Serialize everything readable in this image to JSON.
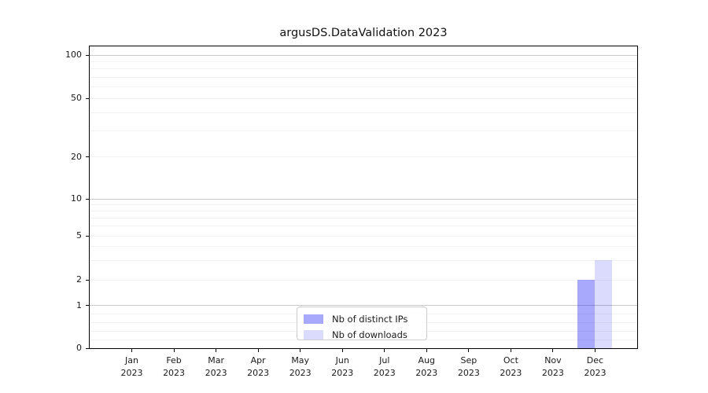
{
  "figure": {
    "background": "#ffffff"
  },
  "chart_data": {
    "type": "bar",
    "title": "argusDS.DataValidation 2023",
    "categories": [
      "Jan",
      "Feb",
      "Mar",
      "Apr",
      "May",
      "Jun",
      "Jul",
      "Aug",
      "Sep",
      "Oct",
      "Nov",
      "Dec"
    ],
    "year_label": "2023",
    "series": [
      {
        "name": "Nb of distinct IPs",
        "color": "rgba(0,0,250,0.34)",
        "color_hex_on_white": "#a8a8fd",
        "values": [
          0,
          0,
          0,
          0,
          0,
          0,
          0,
          0,
          0,
          0,
          0,
          2
        ]
      },
      {
        "name": "Nb of downloads",
        "color": "rgba(0,0,250,0.14)",
        "color_hex_on_white": "#dbdbfe",
        "values": [
          0,
          0,
          0,
          0,
          0,
          0,
          0,
          0,
          0,
          0,
          0,
          3
        ]
      }
    ],
    "xlabel": "",
    "ylabel": "",
    "y_axis": {
      "scale": "symlog",
      "ticks": [
        0,
        1,
        2,
        5,
        10,
        20,
        50,
        100
      ],
      "minor_gridlines": [
        0.2,
        0.4,
        0.6,
        0.8,
        2,
        3,
        4,
        5,
        6,
        7,
        8,
        9,
        20,
        30,
        40,
        50,
        60,
        70,
        80,
        90
      ],
      "major_gridlines": [
        1,
        10,
        100
      ],
      "range": [
        0,
        115
      ]
    },
    "grid": true,
    "legend": {
      "position": "lower center",
      "entries": [
        "Nb of distinct IPs",
        "Nb of downloads"
      ]
    }
  }
}
